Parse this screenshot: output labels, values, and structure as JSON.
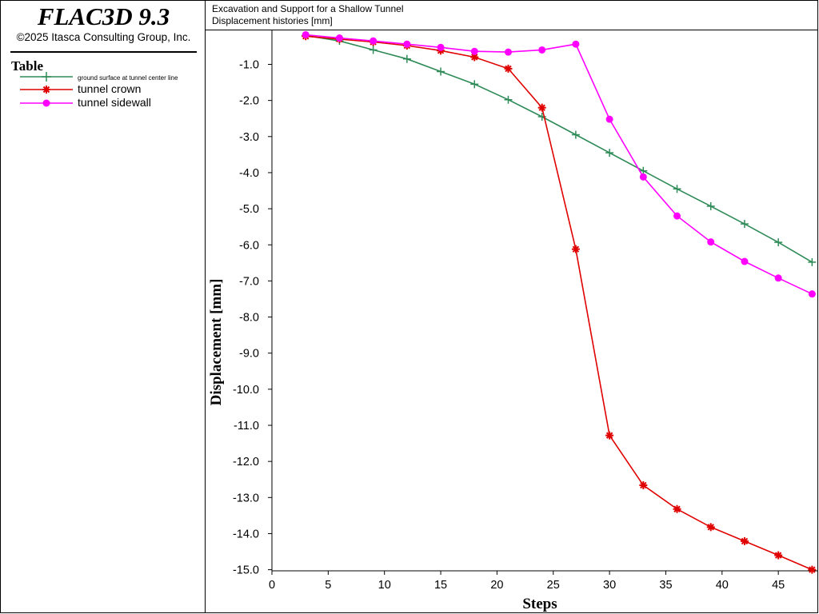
{
  "app": {
    "title": "FLAC3D 9.3",
    "copyright": "©2025 Itasca Consulting Group, Inc."
  },
  "legend": {
    "heading": "Table",
    "entries": [
      {
        "label": "ground surface at tunnel center line",
        "color": "#2e8b57",
        "marker": "plus"
      },
      {
        "label": "tunnel crown",
        "color": "#e00000",
        "marker": "star"
      },
      {
        "label": "tunnel sidewall",
        "color": "#ff00ff",
        "marker": "circle"
      }
    ]
  },
  "header": {
    "line1": "Excavation and Support for a Shallow Tunnel",
    "line2": "Displacement histories [mm]"
  },
  "chart_data": {
    "type": "line",
    "xlabel": "Steps",
    "ylabel": "Displacement [mm]",
    "xlim": [
      0,
      48.5
    ],
    "ylim": [
      -15.0,
      -0.15
    ],
    "xticks": [
      0,
      5,
      10,
      15,
      20,
      25,
      30,
      35,
      40,
      45
    ],
    "xtick_labels": [
      "0",
      "5",
      "10",
      "15",
      "20",
      "25",
      "30",
      "35",
      "40",
      "45"
    ],
    "yticks": [
      -1,
      -2,
      -3,
      -4,
      -5,
      -6,
      -7,
      -8,
      -9,
      -10,
      -11,
      -12,
      -13,
      -14,
      -15
    ],
    "ytick_labels": [
      "-1.0",
      "-2.0",
      "-3.0",
      "-4.0",
      "-5.0",
      "-6.0",
      "-7.0",
      "-8.0",
      "-9.0",
      "-10.0",
      "-11.0",
      "-12.0",
      "-13.0",
      "-14.0",
      "-15.0"
    ],
    "x": [
      3,
      6,
      9,
      12,
      15,
      18,
      21,
      24,
      27,
      30,
      33,
      36,
      39,
      42,
      45,
      48
    ],
    "series": [
      {
        "name": "ground surface at tunnel center line",
        "color": "#2e8b57",
        "marker": "plus",
        "values": [
          -0.2,
          -0.35,
          -0.6,
          -0.85,
          -1.2,
          -1.55,
          -1.98,
          -2.45,
          -2.95,
          -3.45,
          -3.95,
          -4.45,
          -4.93,
          -5.42,
          -5.93,
          -6.48
        ]
      },
      {
        "name": "tunnel crown",
        "color": "#e00000",
        "marker": "star",
        "values": [
          -0.22,
          -0.3,
          -0.38,
          -0.48,
          -0.62,
          -0.8,
          -1.12,
          -2.2,
          -6.12,
          -11.28,
          -12.66,
          -13.32,
          -13.82,
          -14.21,
          -14.6,
          -15.0
        ]
      },
      {
        "name": "tunnel sidewall",
        "color": "#ff00ff",
        "marker": "circle",
        "values": [
          -0.18,
          -0.27,
          -0.35,
          -0.44,
          -0.53,
          -0.64,
          -0.66,
          -0.6,
          -0.44,
          -2.52,
          -4.12,
          -5.2,
          -5.92,
          -6.46,
          -6.92,
          -7.36
        ]
      }
    ]
  }
}
